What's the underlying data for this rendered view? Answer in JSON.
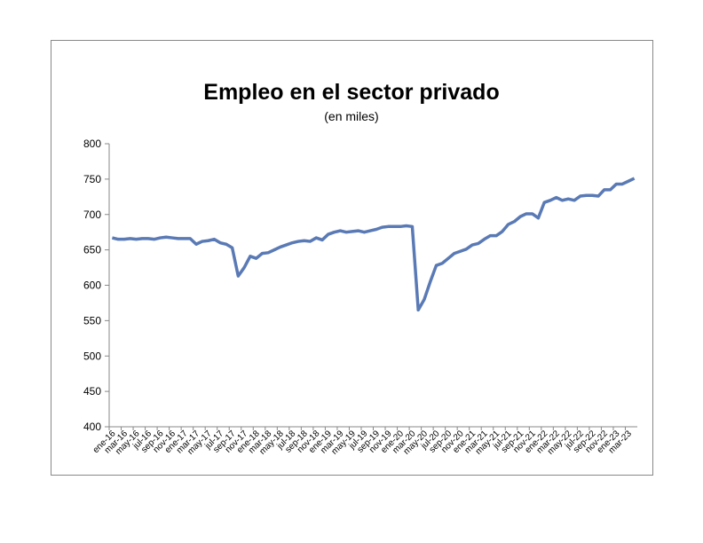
{
  "chart_data": {
    "type": "line",
    "title": "Empleo en el sector privado",
    "subtitle": "(en miles)",
    "categories": [
      "ene-16",
      null,
      "mar-16",
      null,
      "may-16",
      null,
      "jul-16",
      null,
      "sep-16",
      null,
      "nov-16",
      null,
      "ene-17",
      null,
      "mar-17",
      null,
      "may-17",
      null,
      "jul-17",
      null,
      "sep-17",
      null,
      "nov-17",
      null,
      "ene-18",
      null,
      "mar-18",
      null,
      "may-18",
      null,
      "jul-18",
      null,
      "sep-18",
      null,
      "nov-18",
      null,
      "ene-19",
      null,
      "mar-19",
      null,
      "may-19",
      null,
      "jul-19",
      null,
      "sep-19",
      null,
      "nov-19",
      null,
      "ene-20",
      null,
      "mar-20",
      null,
      "may-20",
      null,
      "jul-20",
      null,
      "sep-20",
      null,
      "nov-20",
      null,
      "ene-21",
      null,
      "mar-21",
      null,
      "may-21",
      null,
      "jul-21",
      null,
      "sep-21",
      null,
      "nov-21",
      null,
      "ene-22",
      null,
      "mar-22",
      null,
      "may-22",
      null,
      "jul-22",
      null,
      "sep-22",
      null,
      "nov-22",
      null,
      "ene-23",
      null,
      "mar-23",
      null
    ],
    "series": [
      {
        "name": "Empleo",
        "color": "#5a7ab5",
        "values": [
          667,
          665,
          665,
          666,
          665,
          666,
          666,
          665,
          667,
          668,
          667,
          666,
          666,
          666,
          658,
          662,
          663,
          665,
          660,
          658,
          653,
          613,
          625,
          641,
          638,
          645,
          646,
          650,
          654,
          657,
          660,
          662,
          663,
          662,
          667,
          664,
          672,
          675,
          677,
          675,
          676,
          677,
          675,
          677,
          679,
          682,
          683,
          683,
          683,
          684,
          683,
          565,
          580,
          605,
          628,
          631,
          638,
          645,
          648,
          651,
          657,
          659,
          665,
          670,
          670,
          676,
          686,
          690,
          697,
          701,
          701,
          695,
          717,
          720,
          724,
          720,
          722,
          720,
          726,
          727,
          727,
          726,
          735,
          735,
          743,
          743,
          747,
          751
        ]
      }
    ],
    "ylim": [
      400,
      800
    ],
    "yticks": [
      400,
      450,
      500,
      550,
      600,
      650,
      700,
      750,
      800
    ],
    "grid": false
  }
}
